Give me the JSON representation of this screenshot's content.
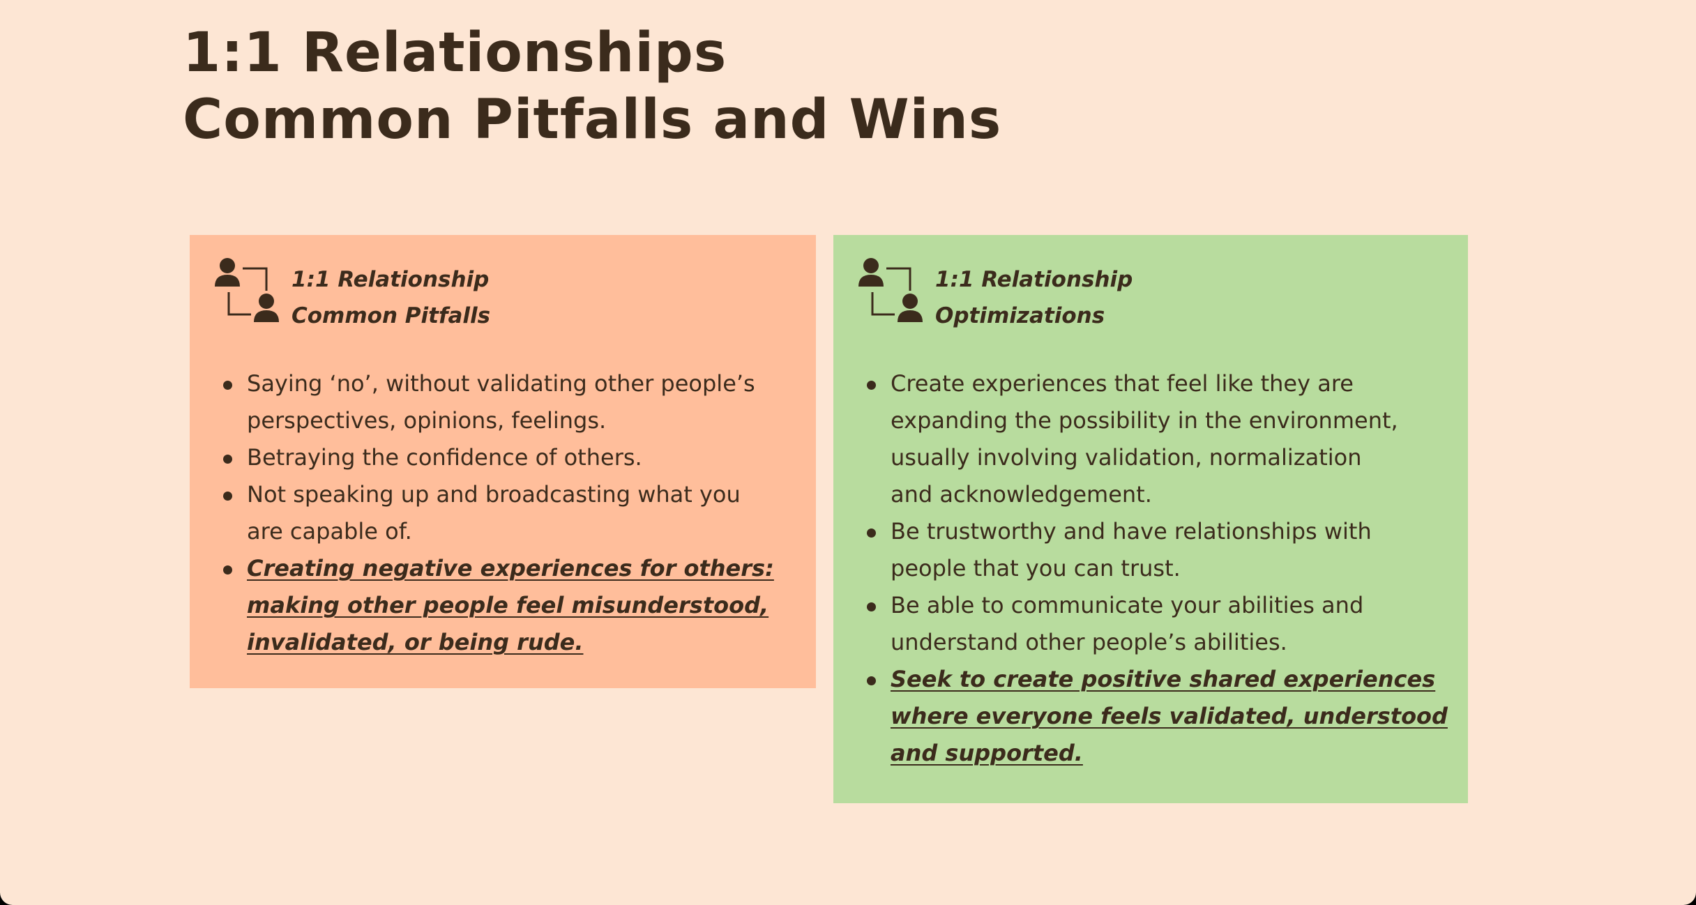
{
  "slide": {
    "title_lines": [
      "1:1 Relationships",
      "Common Pitfalls and Wins"
    ]
  },
  "pitfalls": {
    "icon": "relationship-people-icon",
    "heading_lines": [
      "1:1 Relationship",
      "Common Pitfalls"
    ],
    "bullets": [
      {
        "lines": [
          "Saying ‘no’, without validating other people’s",
          "perspectives, opinions, feelings."
        ],
        "emphasis": false
      },
      {
        "lines": [
          "Betraying the confidence of others."
        ],
        "emphasis": false
      },
      {
        "lines": [
          "Not speaking up and broadcasting what you",
          "are capable of."
        ],
        "emphasis": false
      },
      {
        "lines": [
          "Creating negative experiences for others:",
          "making other people feel misunderstood,",
          "invalidated, or being rude."
        ],
        "emphasis": true
      }
    ]
  },
  "wins": {
    "icon": "relationship-people-icon",
    "heading_lines": [
      "1:1 Relationship",
      "Optimizations"
    ],
    "bullets": [
      {
        "lines": [
          "Create experiences that feel like they are",
          "expanding the possibility in the environment,",
          "usually involving validation, normalization",
          "and acknowledgement."
        ],
        "emphasis": false
      },
      {
        "lines": [
          "Be trustworthy and have relationships with",
          "people that you can trust."
        ],
        "emphasis": false
      },
      {
        "lines": [
          "Be able to communicate your abilities and",
          "understand other people’s abilities."
        ],
        "emphasis": false
      },
      {
        "lines": [
          "Seek to create positive shared experiences",
          "where everyone feels validated, understood",
          "and supported."
        ],
        "emphasis": true
      }
    ]
  },
  "colors": {
    "background": "#fde6d4",
    "pitfalls_card": "#ffbe9b",
    "wins_card": "#b8dc9e",
    "text": "#3b2b1c"
  }
}
